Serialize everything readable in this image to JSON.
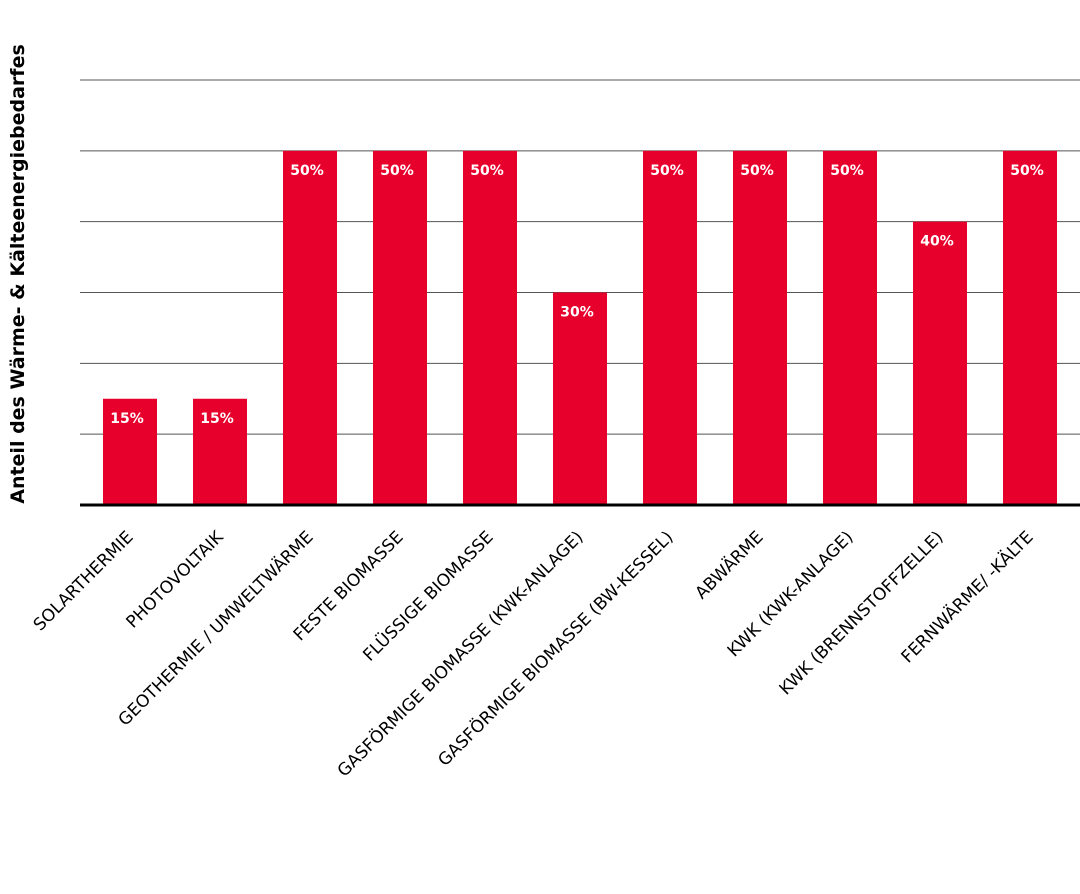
{
  "chart_data": {
    "type": "bar",
    "ylabel": "Anteil des Wärme- & Kälteenergiebedarfes",
    "ylim": [
      0,
      60
    ],
    "grid": true,
    "categories": [
      "SOLARTHERMIE",
      "PHOTOVOLTAIK",
      "GEOTHERMIE / UMWELTWÄRME",
      "FESTE BIOMASSE",
      "FLÜSSIGE BIOMASSE",
      "GASFÖRMIGE BIOMASSE (KWK-ANLAGE)",
      "GASFÖRMIGE BIOMASSE (BW-KESSEL)",
      "ABWÄRME",
      "KWK (KWK-ANLAGE)",
      "KWK (BRENNSTOFFZELLE)",
      "FERNWÄRME/ -KÄLTE"
    ],
    "values": [
      15,
      15,
      50,
      50,
      50,
      30,
      50,
      50,
      50,
      40,
      50
    ],
    "data_labels": [
      "15%",
      "15%",
      "50%",
      "50%",
      "50%",
      "30%",
      "50%",
      "50%",
      "50%",
      "40%",
      "50%"
    ],
    "colors": {
      "bar": "#e8002d",
      "grid": "#555555",
      "axis": "#000000"
    }
  }
}
